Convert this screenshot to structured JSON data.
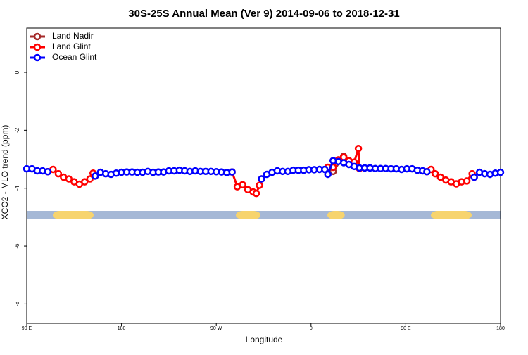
{
  "chart_data": {
    "type": "line",
    "title": "30S-25S Annual Mean (Ver 9)   2014-09-06 to 2018-12-31",
    "xlabel": "Longitude",
    "ylabel": "XCO2 - MLO trend (ppm)",
    "xlim": [
      90,
      540
    ],
    "ylim": [
      -8.67,
      1.53
    ],
    "xticks": [
      {
        "value": 90,
        "label": "90 E"
      },
      180,
      {
        "value": 270,
        "label": "90 W"
      },
      {
        "value": 360,
        "label": "0"
      },
      {
        "value": 450,
        "label": "90 E"
      },
      {
        "value": 540,
        "label": "180"
      }
    ],
    "yticks": [
      0,
      -2,
      -4,
      -6,
      -8
    ],
    "legend": "upper left",
    "land_mask": {
      "y": -4.93,
      "ocean_color": "#a5b8d6",
      "land_color": "#f7d46e",
      "land": [
        [
          114.7,
          153.5
        ],
        [
          288.6,
          312
        ],
        [
          375.5,
          392
        ],
        [
          473.8,
          512.6
        ]
      ]
    },
    "series": [
      {
        "name": "Land Nadir",
        "color": "#a52a2a",
        "x": [
          381,
          391
        ],
        "values": [
          -3.42,
          -2.9
        ]
      },
      {
        "name": "Land Glint",
        "color": "#ff0000",
        "x": [
          110,
          115,
          120,
          125,
          130,
          135,
          140,
          145,
          150,
          153,
          155,
          157,
          285,
          290,
          295,
          300,
          305,
          308,
          311,
          313,
          315,
          376,
          381,
          386,
          391,
          396,
          401,
          405,
          406,
          408,
          470,
          474,
          478,
          483,
          488,
          493,
          498,
          503,
          508,
          513,
          515
        ],
        "values": [
          -3.43,
          -3.35,
          -3.5,
          -3.62,
          -3.68,
          -3.78,
          -3.86,
          -3.78,
          -3.68,
          -3.48,
          -3.58,
          null,
          -3.44,
          -3.95,
          -3.88,
          -4.05,
          -4.13,
          -4.18,
          -3.9,
          -3.68,
          null,
          -3.28,
          -3.28,
          -3.02,
          -2.93,
          -3.05,
          -3.1,
          -2.63,
          -3.32,
          null,
          -3.43,
          -3.35,
          -3.5,
          -3.62,
          -3.72,
          -3.78,
          -3.85,
          -3.78,
          -3.75,
          -3.5,
          -3.62
        ]
      },
      {
        "name": "Ocean Glint",
        "color": "#0000ff",
        "x": [
          90,
          95,
          100,
          105,
          110,
          112,
          155,
          160,
          165,
          170,
          175,
          180,
          185,
          190,
          195,
          200,
          205,
          210,
          215,
          220,
          225,
          230,
          235,
          240,
          245,
          250,
          255,
          260,
          265,
          270,
          275,
          280,
          285,
          287,
          313,
          318,
          323,
          328,
          333,
          338,
          343,
          348,
          353,
          358,
          363,
          368,
          373,
          376,
          381,
          386,
          391,
          396,
          401,
          406,
          411,
          416,
          421,
          426,
          431,
          436,
          441,
          446,
          451,
          456,
          461,
          466,
          470,
          472,
          515,
          520,
          525,
          530,
          535,
          540
        ],
        "values": [
          -3.33,
          -3.33,
          -3.4,
          -3.4,
          -3.43,
          null,
          -3.58,
          -3.45,
          -3.5,
          -3.52,
          -3.48,
          -3.45,
          -3.44,
          -3.44,
          -3.45,
          -3.45,
          -3.42,
          -3.45,
          -3.44,
          -3.44,
          -3.4,
          -3.4,
          -3.38,
          -3.4,
          -3.42,
          -3.4,
          -3.42,
          -3.42,
          -3.42,
          -3.43,
          -3.44,
          -3.46,
          -3.44,
          null,
          -3.68,
          -3.52,
          -3.45,
          -3.4,
          -3.42,
          -3.42,
          -3.38,
          -3.38,
          -3.38,
          -3.36,
          -3.36,
          -3.35,
          -3.35,
          -3.52,
          -3.05,
          -3.08,
          -3.12,
          -3.18,
          -3.25,
          -3.3,
          -3.3,
          -3.3,
          -3.32,
          -3.32,
          -3.32,
          -3.33,
          -3.33,
          -3.35,
          -3.33,
          -3.33,
          -3.38,
          -3.4,
          -3.43,
          null,
          -3.62,
          -3.45,
          -3.5,
          -3.52,
          -3.48,
          -3.45
        ]
      }
    ]
  }
}
